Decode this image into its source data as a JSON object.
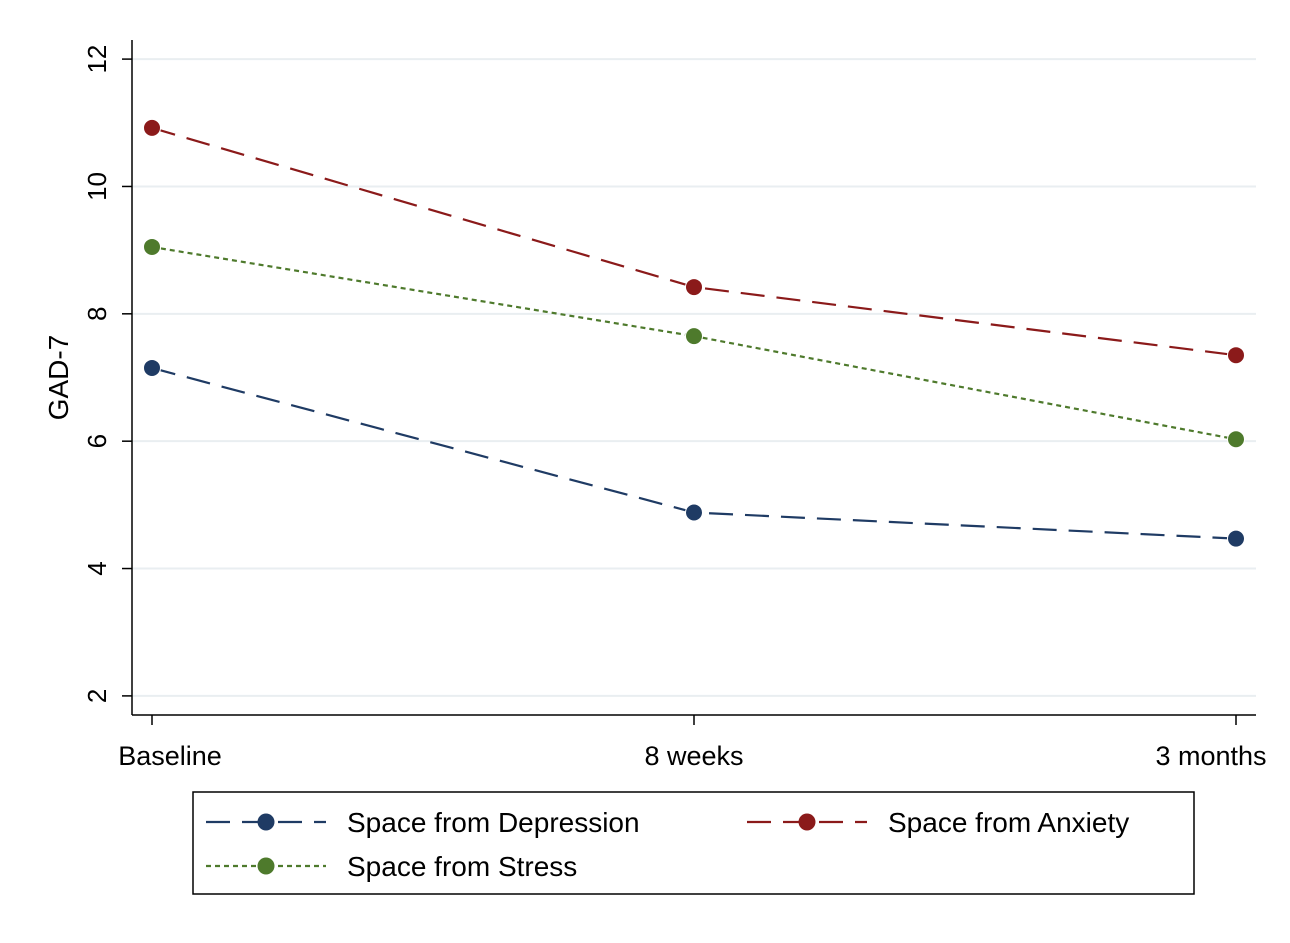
{
  "chart_data": {
    "type": "line",
    "title": "",
    "xlabel": "",
    "ylabel": "GAD-7",
    "categories": [
      "Baseline",
      "8 weeks",
      "3 months"
    ],
    "yticks": [
      2,
      4,
      6,
      8,
      10,
      12
    ],
    "ylim": [
      1.7,
      12.3
    ],
    "grid": true,
    "legend_position": "bottom",
    "series": [
      {
        "name": "Space from Depression",
        "values": [
          7.15,
          4.88,
          4.47
        ],
        "color": "#1f3b64",
        "line_style": "long-dash"
      },
      {
        "name": "Space from Anxiety",
        "values": [
          10.92,
          8.42,
          7.35
        ],
        "color": "#8b1a1a",
        "line_style": "long-dash"
      },
      {
        "name": "Space from Stress",
        "values": [
          9.05,
          7.65,
          6.03
        ],
        "color": "#4e7a2c",
        "line_style": "short-dash"
      }
    ]
  }
}
